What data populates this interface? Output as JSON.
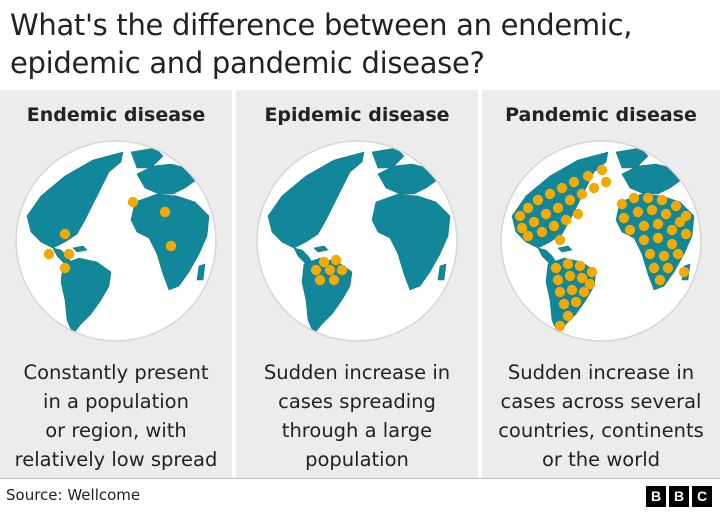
{
  "title": {
    "line1": "What's the difference between an endemic,",
    "line2": "epidemic and pandemic disease?"
  },
  "colors": {
    "ocean": "#ffffff",
    "land": "#12879a",
    "case_dot": "#f2a900",
    "panel_bg": "#ececec"
  },
  "panels": [
    {
      "heading": "Endemic disease",
      "description": [
        "Constantly present",
        "in a population",
        "or region, with",
        "relatively low spread"
      ],
      "spread_level": "low"
    },
    {
      "heading": "Epidemic disease",
      "description": [
        "Sudden increase in",
        "cases spreading",
        "through a large",
        "population"
      ],
      "spread_level": "regional"
    },
    {
      "heading": "Pandemic disease",
      "description": [
        "Sudden increase in",
        "cases across several",
        "countries, continents",
        "or the world"
      ],
      "spread_level": "global"
    }
  ],
  "footer": {
    "source": "Source: Wellcome",
    "logo_letters": [
      "B",
      "B",
      "C"
    ]
  }
}
